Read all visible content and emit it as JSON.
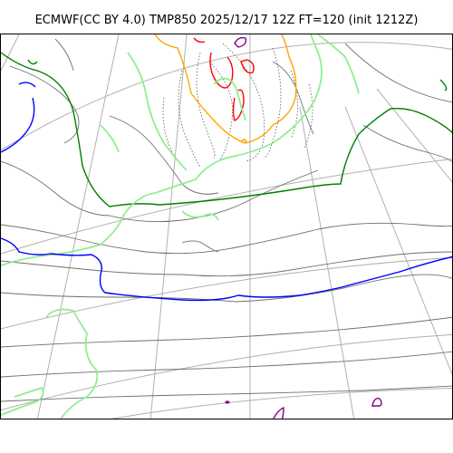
{
  "title": "ECMWF(CC BY 4.0) TMP850 2025/12/17 12Z FT=120 (init 1212Z)",
  "colors": {
    "graticule": "#b0b0b0",
    "coast": "#6f6f6f",
    "isotherm_dotted": "#555555",
    "cold_deep": "#800080",
    "cold": "#ff0000",
    "cool": "#ffa500",
    "zero": "#008000",
    "mild": "#90ee90",
    "warm": "#0000ff"
  },
  "icons": {
    "graticule_lines": "grid-lines",
    "temperature_isotherms": "contour-lines"
  }
}
